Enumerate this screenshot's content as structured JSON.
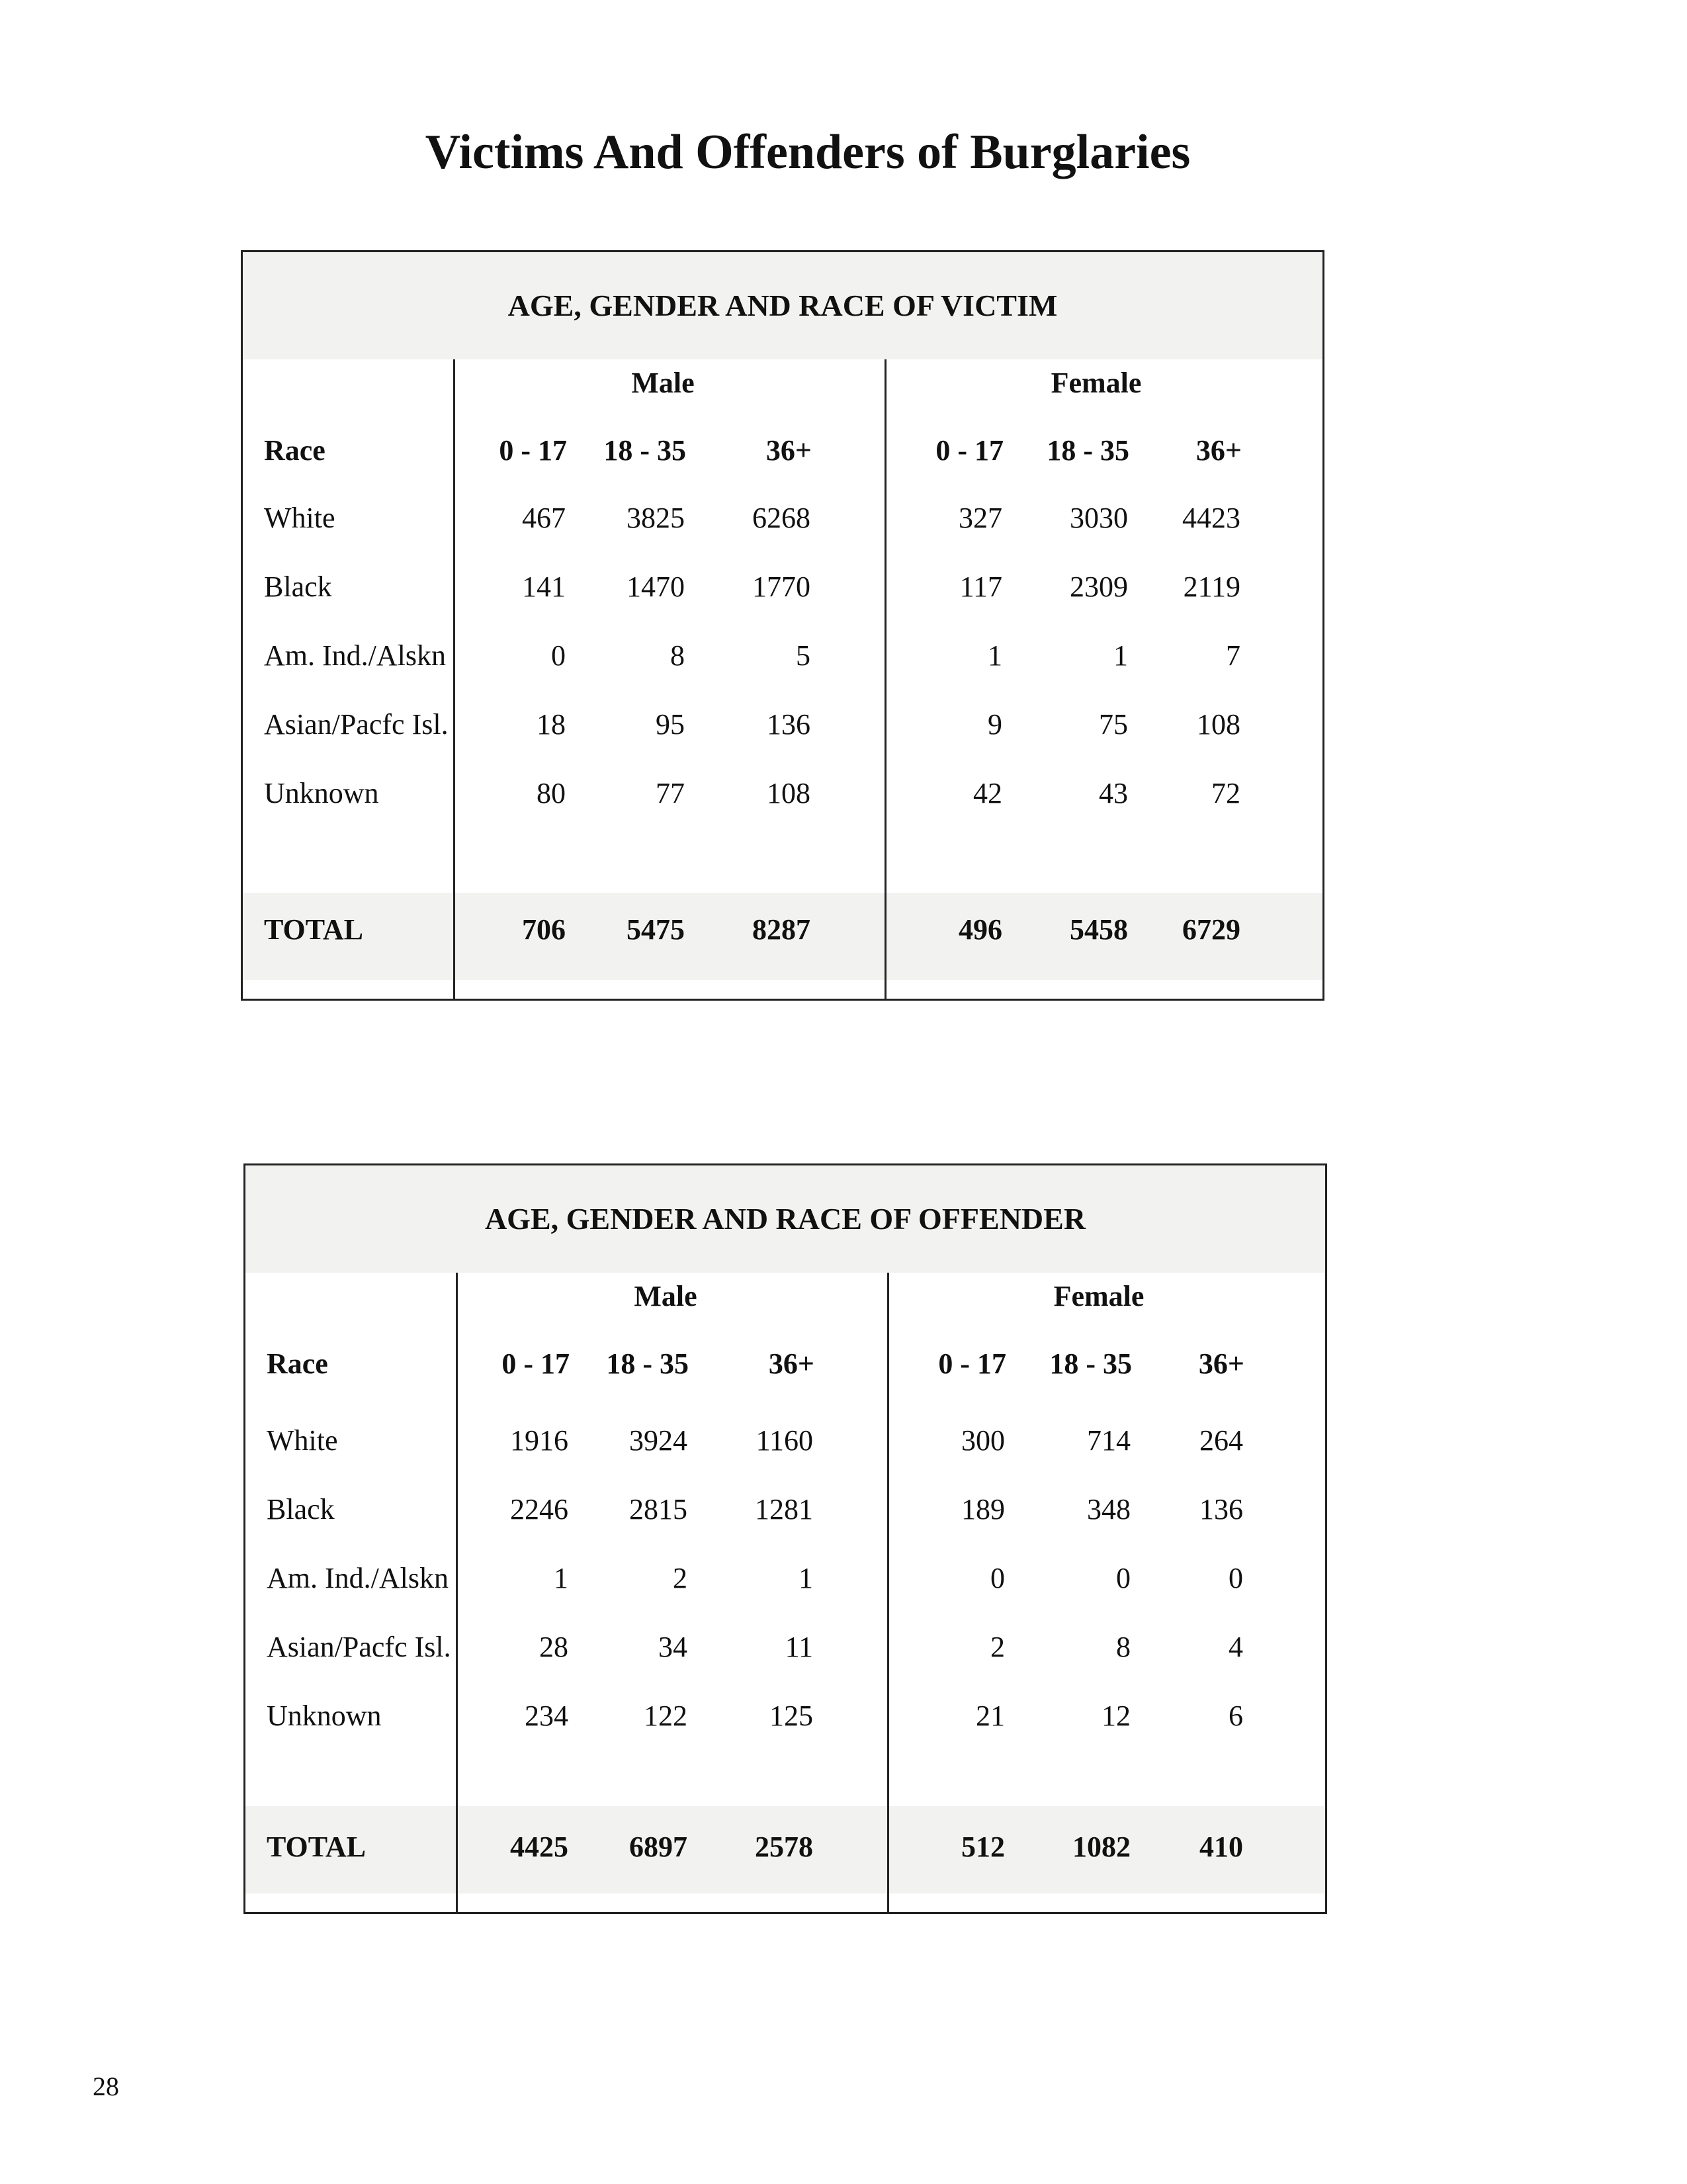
{
  "title": "Victims And Offenders of Burglaries",
  "page_number": "28",
  "tables": [
    {
      "heading": "AGE, GENDER AND RACE OF VICTIM",
      "male_label": "Male",
      "female_label": "Female",
      "race_label": "Race",
      "age_groups": [
        "0 - 17",
        "18 - 35",
        "36+"
      ],
      "rows": [
        {
          "race": "White",
          "male": [
            "467",
            "3825",
            "6268"
          ],
          "female": [
            "327",
            "3030",
            "4423"
          ]
        },
        {
          "race": "Black",
          "male": [
            "141",
            "1470",
            "1770"
          ],
          "female": [
            "117",
            "2309",
            "2119"
          ]
        },
        {
          "race": "Am. Ind./Alskn",
          "male": [
            "0",
            "8",
            "5"
          ],
          "female": [
            "1",
            "1",
            "7"
          ]
        },
        {
          "race": "Asian/Pacfc Isl.",
          "male": [
            "18",
            "95",
            "136"
          ],
          "female": [
            "9",
            "75",
            "108"
          ]
        },
        {
          "race": "Unknown",
          "male": [
            "80",
            "77",
            "108"
          ],
          "female": [
            "42",
            "43",
            "72"
          ]
        }
      ],
      "total": {
        "race": "TOTAL",
        "male": [
          "706",
          "5475",
          "8287"
        ],
        "female": [
          "496",
          "5458",
          "6729"
        ]
      }
    },
    {
      "heading": "AGE, GENDER AND RACE OF OFFENDER",
      "male_label": "Male",
      "female_label": "Female",
      "race_label": "Race",
      "age_groups": [
        "0 - 17",
        "18 - 35",
        "36+"
      ],
      "rows": [
        {
          "race": "White",
          "male": [
            "1916",
            "3924",
            "1160"
          ],
          "female": [
            "300",
            "714",
            "264"
          ]
        },
        {
          "race": "Black",
          "male": [
            "2246",
            "2815",
            "1281"
          ],
          "female": [
            "189",
            "348",
            "136"
          ]
        },
        {
          "race": "Am. Ind./Alskn",
          "male": [
            "1",
            "2",
            "1"
          ],
          "female": [
            "0",
            "0",
            "0"
          ]
        },
        {
          "race": "Asian/Pacfc Isl.",
          "male": [
            "28",
            "34",
            "11"
          ],
          "female": [
            "2",
            "8",
            "4"
          ]
        },
        {
          "race": "Unknown",
          "male": [
            "234",
            "122",
            "125"
          ],
          "female": [
            "21",
            "12",
            "6"
          ]
        }
      ],
      "total": {
        "race": "TOTAL",
        "male": [
          "4425",
          "6897",
          "2578"
        ],
        "female": [
          "512",
          "1082",
          "410"
        ]
      }
    }
  ]
}
